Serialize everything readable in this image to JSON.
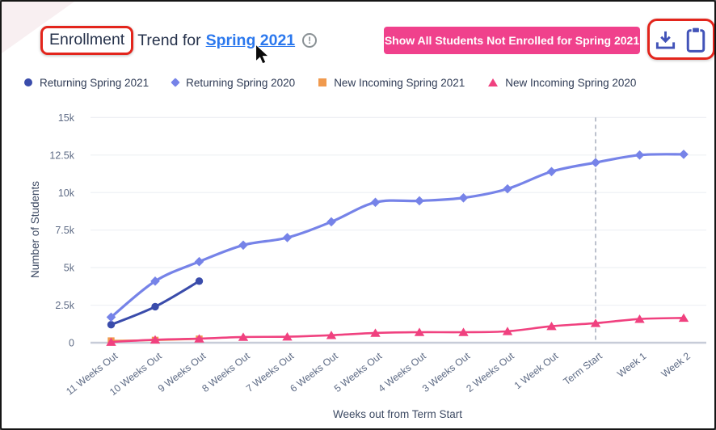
{
  "header": {
    "title_highlighted_word": "Enrollment",
    "title_rest": "Trend for",
    "term_link": "Spring 2021",
    "info_tooltip_symbol": "!",
    "action_button_label": "Show All Students Not Enrolled for Spring 2021"
  },
  "annotation_color": "#e3251c",
  "legend": [
    {
      "label": "Returning Spring 2021",
      "marker": "circle",
      "color": "#3a4cab"
    },
    {
      "label": "Returning Spring 2020",
      "marker": "diamond",
      "color": "#7683e8"
    },
    {
      "label": "New Incoming Spring 2021",
      "marker": "square",
      "color": "#f09a4e"
    },
    {
      "label": "New Incoming Spring 2020",
      "marker": "triangle",
      "color": "#f0417f"
    }
  ],
  "chart_data": {
    "type": "line",
    "title": "Enrollment Trend for Spring 2021",
    "xlabel": "Weeks out from Term Start",
    "ylabel": "Number of Students",
    "ylim": [
      0,
      15000
    ],
    "ytick_values": [
      0,
      2500,
      5000,
      7500,
      10000,
      12500,
      15000
    ],
    "ytick_labels": [
      "0",
      "2.5k",
      "5k",
      "7.5k",
      "10k",
      "12.5k",
      "15k"
    ],
    "grid": "horizontal",
    "legend_position": "top",
    "vline_at": "Term Start",
    "vline_style": "dashed",
    "categories": [
      "11 Weeks Out",
      "10 Weeks Out",
      "9 Weeks Out",
      "8 Weeks Out",
      "7 Weeks Out",
      "6 Weeks Out",
      "5 Weeks Out",
      "4 Weeks Out",
      "3 Weeks Out",
      "2 Weeks Out",
      "1 Week Out",
      "Term Start",
      "Week 1",
      "Week 2"
    ],
    "series": [
      {
        "name": "Returning Spring 2021",
        "marker": "circle",
        "color": "#3a4cab",
        "values": [
          1200,
          2400,
          4100
        ]
      },
      {
        "name": "Returning Spring 2020",
        "marker": "diamond",
        "color": "#7683e8",
        "values": [
          1700,
          4100,
          5400,
          6500,
          7000,
          8050,
          9350,
          9450,
          9650,
          10250,
          11400,
          12000,
          12500,
          12550
        ]
      },
      {
        "name": "New Incoming Spring 2021",
        "marker": "square",
        "color": "#f09a4e",
        "values": [
          130,
          170,
          250
        ]
      },
      {
        "name": "New Incoming Spring 2020",
        "marker": "triangle",
        "color": "#f0417f",
        "values": [
          50,
          200,
          270,
          380,
          400,
          500,
          650,
          700,
          700,
          760,
          1100,
          1300,
          1580,
          1650
        ]
      }
    ]
  }
}
